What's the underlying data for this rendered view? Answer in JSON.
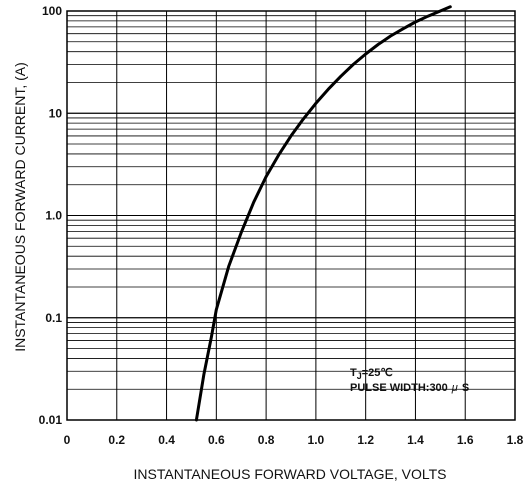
{
  "chart_data": {
    "type": "line",
    "title": "",
    "xlabel": "INSTANTANEOUS FORWARD VOLTAGE, VOLTS",
    "ylabel": "INSTANTANEOUS FORWARD CURRENT,  (A)",
    "xlim": [
      0,
      1.8
    ],
    "ylim": [
      0.01,
      100
    ],
    "yscale": "log",
    "grid": true,
    "x_ticks": [
      "0",
      "0.2",
      "0.4",
      "0.6",
      "0.8",
      "1.0",
      "1.2",
      "1.4",
      "1.6",
      "1.8"
    ],
    "y_ticks": [
      "0.01",
      "0.1",
      "1.0",
      "10",
      "100"
    ],
    "series": [
      {
        "x": [
          0.52,
          0.55,
          0.58,
          0.6,
          0.65,
          0.7,
          0.75,
          0.8,
          0.85,
          0.9,
          0.95,
          1.0,
          1.05,
          1.1,
          1.15,
          1.2,
          1.25,
          1.3,
          1.35,
          1.4,
          1.45,
          1.5,
          1.54
        ],
        "y": [
          0.01,
          0.028,
          0.065,
          0.12,
          0.32,
          0.68,
          1.35,
          2.4,
          3.9,
          6.0,
          8.8,
          12.5,
          17.2,
          23.0,
          30.0,
          38.0,
          47.0,
          57.0,
          67.0,
          78.0,
          89.0,
          100.0,
          110.0
        ]
      }
    ],
    "annotations": {
      "tj_prefix": "T",
      "tj_subscript": "J",
      "tj_value": "=25",
      "tj_unit": "℃",
      "pulse_prefix": "PULSE WIDTH:300",
      "pulse_mu": "μ",
      "pulse_unit": "S"
    }
  }
}
